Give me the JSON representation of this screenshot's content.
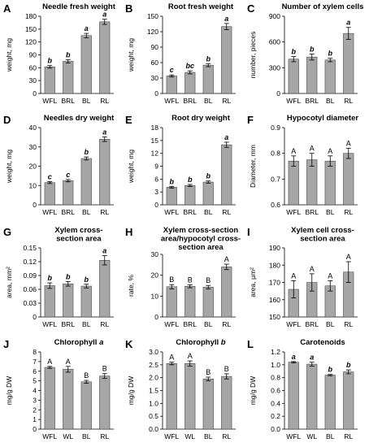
{
  "chart_data": [
    {
      "letter": "A",
      "type": "bar",
      "title": "Needle fresh weight",
      "title_italic": "",
      "ylabel": "weight, mg",
      "categories": [
        "WFL",
        "BRL",
        "BL",
        "RL"
      ],
      "values": [
        62,
        75,
        135,
        167
      ],
      "errors": [
        3,
        4,
        5,
        6
      ],
      "ylim": [
        0,
        180
      ],
      "yticks": [
        "0",
        "30",
        "60",
        "90",
        "120",
        "150",
        "180"
      ],
      "letters": [
        "b",
        "b",
        "a",
        "a"
      ],
      "letter_style": "italic",
      "bar_color": "#a6a6a6"
    },
    {
      "letter": "B",
      "type": "bar",
      "title": "Root fresh weight",
      "title_italic": "",
      "ylabel": "weight, mg",
      "categories": [
        "WFL",
        "BRL",
        "BL",
        "RL"
      ],
      "values": [
        34,
        41,
        55,
        130
      ],
      "errors": [
        2,
        3,
        3,
        6
      ],
      "ylim": [
        0,
        150
      ],
      "yticks": [
        "0",
        "30",
        "60",
        "90",
        "120",
        "150"
      ],
      "letters": [
        "c",
        "bc",
        "b",
        "a"
      ],
      "letter_style": "italic",
      "bar_color": "#a6a6a6"
    },
    {
      "letter": "C",
      "type": "bar",
      "title": "Number of xylem cells",
      "title_italic": "",
      "ylabel": "number, pieces",
      "categories": [
        "WFL",
        "BRL",
        "BL",
        "RL"
      ],
      "values": [
        400,
        425,
        390,
        700
      ],
      "errors": [
        30,
        35,
        20,
        70
      ],
      "ylim": [
        0,
        900
      ],
      "yticks": [
        "0",
        "300",
        "600",
        "900"
      ],
      "letters": [
        "b",
        "b",
        "b",
        "a"
      ],
      "letter_style": "italic",
      "bar_color": "#a6a6a6"
    },
    {
      "letter": "D",
      "type": "bar",
      "title": "Needles dry weight",
      "title_italic": "",
      "ylabel": "weight, mg",
      "categories": [
        "WFL",
        "BRL",
        "BL",
        "RL"
      ],
      "values": [
        11.5,
        12.5,
        24,
        34
      ],
      "errors": [
        0.5,
        0.6,
        0.8,
        1.2
      ],
      "ylim": [
        0,
        40
      ],
      "yticks": [
        "0",
        "10",
        "20",
        "30",
        "40"
      ],
      "letters": [
        "c",
        "c",
        "b",
        "a"
      ],
      "letter_style": "italic",
      "bar_color": "#a6a6a6"
    },
    {
      "letter": "E",
      "type": "bar",
      "title": "Root dry weight",
      "title_italic": "",
      "ylabel": "weight, mg",
      "categories": [
        "WFL",
        "BRL",
        "BL",
        "RL"
      ],
      "values": [
        4.1,
        4.5,
        5.3,
        14
      ],
      "errors": [
        0.2,
        0.25,
        0.25,
        0.6
      ],
      "ylim": [
        0,
        18
      ],
      "yticks": [
        "0",
        "3",
        "6",
        "9",
        "12",
        "15",
        "18"
      ],
      "letters": [
        "b",
        "b",
        "b",
        "a"
      ],
      "letter_style": "italic",
      "bar_color": "#a6a6a6"
    },
    {
      "letter": "F",
      "type": "bar",
      "title": "Hypocotyl diameter",
      "title_italic": "",
      "ylabel": "Diameter, mm",
      "categories": [
        "WFL",
        "BRL",
        "BL",
        "RL"
      ],
      "values": [
        0.77,
        0.775,
        0.77,
        0.8
      ],
      "errors": [
        0.02,
        0.025,
        0.02,
        0.02
      ],
      "ylim": [
        0.6,
        0.9
      ],
      "yticks": [
        "0.6",
        "0.7",
        "0.8",
        "0.9"
      ],
      "letters": [
        "A",
        "A",
        "A",
        "A"
      ],
      "letter_style": "upright",
      "bar_color": "#a6a6a6"
    },
    {
      "letter": "G",
      "type": "bar",
      "title": "Xylem  cross-\nsection area",
      "title_italic": "",
      "ylabel": "area, mm²",
      "categories": [
        "WFL",
        "BRL",
        "BL",
        "RL"
      ],
      "values": [
        0.068,
        0.072,
        0.067,
        0.123
      ],
      "errors": [
        0.006,
        0.005,
        0.004,
        0.01
      ],
      "ylim": [
        0,
        0.15
      ],
      "yticks": [
        "0",
        "0.03",
        "0.06",
        "0.09",
        "0.12",
        "0.15"
      ],
      "letters": [
        "b",
        "b",
        "b",
        "a"
      ],
      "letter_style": "italic",
      "bar_color": "#a6a6a6"
    },
    {
      "letter": "H",
      "type": "bar",
      "title": "Xylem cross-section\narea/hypocotyl cross-\nsection area",
      "title_italic": "",
      "ylabel": "rate, %",
      "categories": [
        "WFL",
        "BRL",
        "BL",
        "RL"
      ],
      "values": [
        14.5,
        14.7,
        14.3,
        24
      ],
      "errors": [
        1.0,
        0.7,
        0.8,
        1.3
      ],
      "ylim": [
        0,
        30
      ],
      "yticks": [
        "0",
        "10",
        "20",
        "30"
      ],
      "letters": [
        "B",
        "B",
        "B",
        "A"
      ],
      "letter_style": "upright",
      "bar_color": "#a6a6a6"
    },
    {
      "letter": "I",
      "type": "bar",
      "title": "Xylem cell cross-\nsection area",
      "title_italic": "",
      "ylabel": "area, μm²",
      "categories": [
        "WFL",
        "BRL",
        "BL",
        "RL"
      ],
      "values": [
        166,
        170,
        168,
        176
      ],
      "errors": [
        5,
        5,
        3,
        6
      ],
      "ylim": [
        150,
        190
      ],
      "yticks": [
        "150",
        "160",
        "170",
        "180",
        "190"
      ],
      "letters": [
        "A",
        "A",
        "A",
        "A"
      ],
      "letter_style": "upright",
      "bar_color": "#a6a6a6"
    },
    {
      "letter": "J",
      "type": "bar",
      "title": "Chlorophyll ",
      "title_italic": "a",
      "ylabel": "mg/g DW",
      "categories": [
        "WFL",
        "WL",
        "BL",
        "RL"
      ],
      "values": [
        6.4,
        6.2,
        4.9,
        5.5
      ],
      "errors": [
        0.1,
        0.3,
        0.15,
        0.25
      ],
      "ylim": [
        0,
        8
      ],
      "yticks": [
        "0",
        "1",
        "2",
        "3",
        "4",
        "5",
        "6",
        "7",
        "8"
      ],
      "letters": [
        "A",
        "A",
        "B",
        "B"
      ],
      "letter_style": "upright",
      "bar_color": "#a6a6a6"
    },
    {
      "letter": "K",
      "type": "bar",
      "title": "Chlorophyll ",
      "title_italic": "b",
      "ylabel": "mg/g DW",
      "categories": [
        "WFL",
        "WL",
        "BL",
        "RL"
      ],
      "values": [
        2.55,
        2.55,
        1.95,
        2.05
      ],
      "errors": [
        0.05,
        0.1,
        0.07,
        0.1
      ],
      "ylim": [
        0,
        3.0
      ],
      "yticks": [
        "0.0",
        "0.5",
        "1.0",
        "1.5",
        "2.0",
        "2.5",
        "3.0"
      ],
      "letters": [
        "A",
        "A",
        "B",
        "B"
      ],
      "letter_style": "upright",
      "bar_color": "#a6a6a6"
    },
    {
      "letter": "L",
      "type": "bar",
      "title": "Carotenoids",
      "title_italic": "",
      "ylabel": "mg/g DW",
      "categories": [
        "WFL",
        "WL",
        "BL",
        "RL"
      ],
      "values": [
        1.04,
        1.01,
        0.84,
        0.89
      ],
      "errors": [
        0.01,
        0.03,
        0.01,
        0.03
      ],
      "ylim": [
        0,
        1.2
      ],
      "yticks": [
        "0.0",
        "0.2",
        "0.4",
        "0.6",
        "0.8",
        "1.0",
        "1.2"
      ],
      "letters": [
        "a",
        "a",
        "b",
        "b"
      ],
      "letter_style": "italic",
      "bar_color": "#a6a6a6"
    }
  ]
}
